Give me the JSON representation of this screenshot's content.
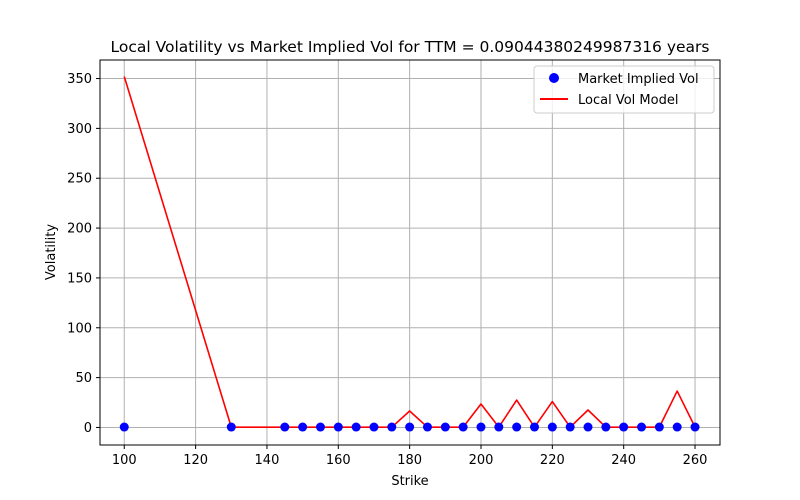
{
  "chart_data": {
    "type": "line",
    "title": "Local Volatility vs Market Implied Vol for TTM = 0.09044380249987316 years",
    "xlabel": "Strike",
    "ylabel": "Volatility",
    "xlim": [
      93.2,
      267.0
    ],
    "ylim": [
      -17.6,
      368.6
    ],
    "xticks": [
      100,
      120,
      140,
      160,
      180,
      200,
      220,
      240,
      260
    ],
    "yticks": [
      0,
      50,
      100,
      150,
      200,
      250,
      300,
      350
    ],
    "grid": true,
    "legend_position": "top-right",
    "colors": {
      "market": "#0000ff",
      "local": "#ff0000",
      "grid": "#b0b0b0"
    },
    "series": [
      {
        "name": "Market Implied Vol",
        "kind": "scatter",
        "x": [
          100,
          130,
          145,
          150,
          155,
          160,
          165,
          170,
          175,
          180,
          185,
          190,
          195,
          200,
          205,
          210,
          215,
          220,
          225,
          230,
          235,
          240,
          245,
          250,
          255,
          260
        ],
        "values": [
          0.4,
          0.4,
          0.4,
          0.4,
          0.4,
          0.4,
          0.4,
          0.4,
          0.4,
          0.4,
          0.4,
          0.4,
          0.4,
          0.4,
          0.4,
          0.4,
          0.4,
          0.4,
          0.4,
          0.4,
          0.4,
          0.4,
          0.4,
          0.4,
          0.4,
          0.4
        ]
      },
      {
        "name": "Local Vol Model",
        "kind": "line",
        "x": [
          100,
          130,
          145,
          150,
          155,
          160,
          165,
          170,
          175,
          180,
          185,
          190,
          195,
          200,
          205,
          210,
          215,
          220,
          225,
          230,
          235,
          240,
          245,
          250,
          255,
          260
        ],
        "values": [
          352,
          0.3,
          0.3,
          0.3,
          0.3,
          0.3,
          0.3,
          0.3,
          0.3,
          16.5,
          0.3,
          0.3,
          0.3,
          23.5,
          0.3,
          27.5,
          0.3,
          26,
          0.3,
          17.5,
          0.3,
          0.3,
          0.3,
          0.3,
          36.5,
          0.3
        ]
      }
    ]
  }
}
